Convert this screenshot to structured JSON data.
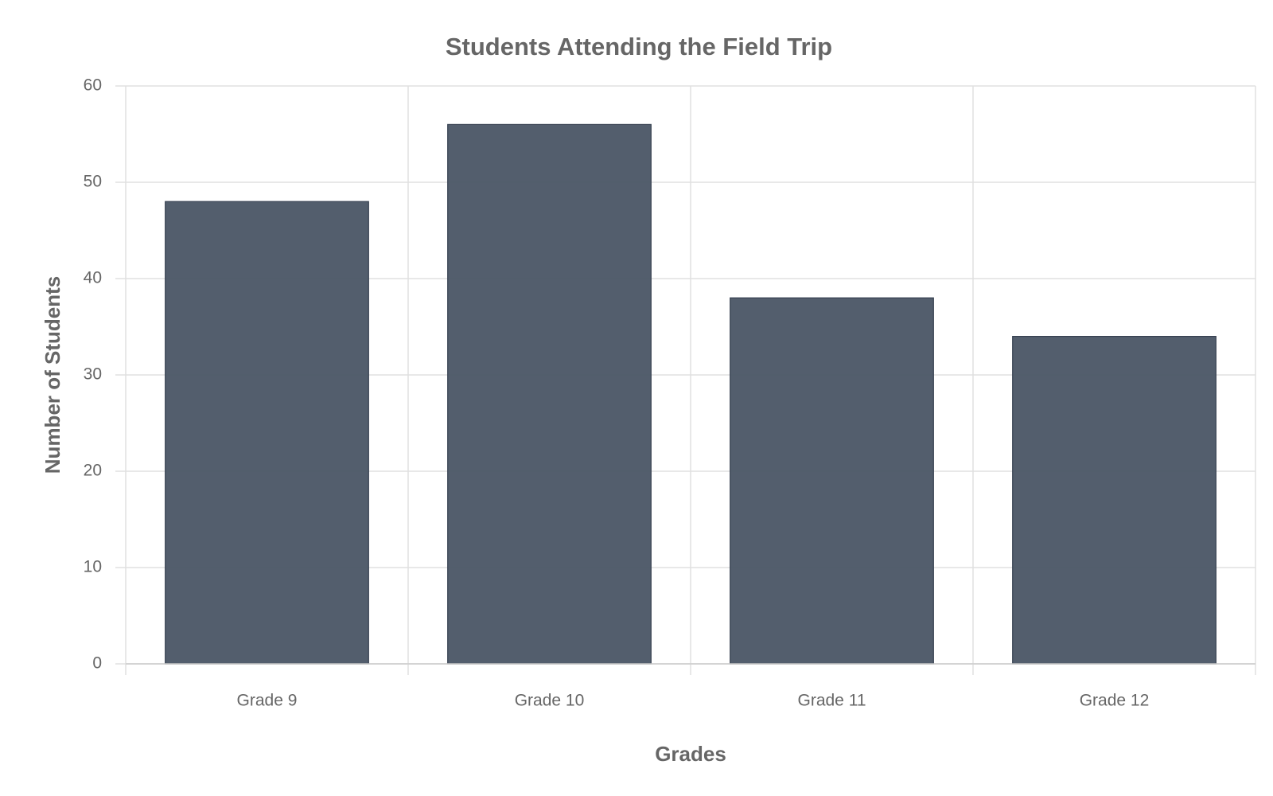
{
  "chart_data": {
    "type": "bar",
    "title": "Students Attending the Field Trip",
    "x_label": "Grades",
    "y_label": "Number of Students",
    "categories": [
      "Grade 9",
      "Grade 10",
      "Grade 11",
      "Grade 12"
    ],
    "values": [
      48,
      56,
      38,
      34
    ],
    "color": "#4a5565",
    "ylim": [
      0,
      60
    ],
    "yticks": [
      0,
      10,
      20,
      30,
      40,
      50,
      60
    ],
    "grid": true
  }
}
